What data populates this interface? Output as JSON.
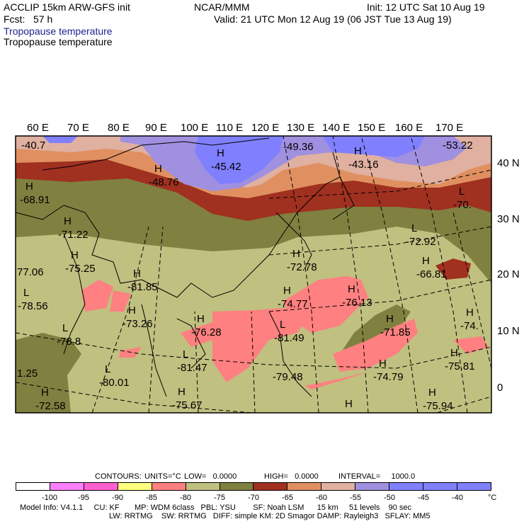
{
  "header": {
    "model": "ACCLIP 15km ARW-GFS init",
    "org": "NCAR/MMM",
    "init": "Init: 12 UTC Sat 10 Aug 19",
    "fcst": "Fcst:   57 h",
    "valid": "Valid: 21 UTC Mon 12 Aug 19 (06 JST Tue 13 Aug 19)",
    "field_title_1": "Tropopause temperature",
    "field_title_2": "Tropopause temperature",
    "title_color_1": "#202090"
  },
  "axes": {
    "lon_labels": [
      "60 E",
      "70 E",
      "80 E",
      "90 E",
      "100 E",
      "110 E",
      "120 E",
      "130 E",
      "140 E",
      "150 E",
      "160 E",
      "170 E"
    ],
    "lat_labels": [
      "40 N",
      "30 N",
      "20 N",
      "10 N",
      "0"
    ]
  },
  "map_labels": [
    {
      "sym": "",
      "val": "-40.7"
    },
    {
      "sym": "H",
      "val": "-68.91"
    },
    {
      "sym": "H",
      "val": "-71.22"
    },
    {
      "sym": "H",
      "val": "-75.25"
    },
    {
      "sym": "",
      "val": "77.06"
    },
    {
      "sym": "H",
      "val": "-81.85"
    },
    {
      "sym": "L",
      "val": "-78.56"
    },
    {
      "sym": "H",
      "val": "-73.26"
    },
    {
      "sym": "L",
      "val": "-78.8"
    },
    {
      "sym": "",
      "val": "1.25"
    },
    {
      "sym": "L",
      "val": "-80.01"
    },
    {
      "sym": "H",
      "val": "-72.58"
    },
    {
      "sym": "H",
      "val": "-75.67"
    },
    {
      "sym": "H",
      "val": "-76.28"
    },
    {
      "sym": "L",
      "val": "-81.47"
    },
    {
      "sym": "H",
      "val": "-45.42"
    },
    {
      "sym": "H",
      "val": "-48.76"
    },
    {
      "sym": "",
      "val": "-49.36"
    },
    {
      "sym": "H",
      "val": "-43.16"
    },
    {
      "sym": "",
      "val": "-53.22"
    },
    {
      "sym": "L",
      "val": "-70."
    },
    {
      "sym": "L",
      "val": "-72.92"
    },
    {
      "sym": "H",
      "val": "-72.78"
    },
    {
      "sym": "H",
      "val": "-66.81"
    },
    {
      "sym": "H",
      "val": "-74.77"
    },
    {
      "sym": "H",
      "val": "-76.13"
    },
    {
      "sym": "L",
      "val": "-81.49"
    },
    {
      "sym": "H",
      "val": "-71.85"
    },
    {
      "sym": "H",
      "val": "-74."
    },
    {
      "sym": "H",
      "val": "-75.81"
    },
    {
      "sym": "H",
      "val": "-74.79"
    },
    {
      "sym": "",
      "val": "-79.48"
    },
    {
      "sym": "H",
      "val": "-75.94"
    },
    {
      "sym": "H",
      "val": ""
    }
  ],
  "contours_info": {
    "contours": "CONTOURS:",
    "units": "UNITS=°C",
    "low": "LOW=   0.0000",
    "high": "HIGH=   0.0000",
    "interval": "INTERVAL=     1000.0"
  },
  "colorbar": {
    "colors": [
      "#ffffff",
      "#ff80ff",
      "#ff60d0",
      "#ffff80",
      "#ff8080",
      "#c0c080",
      "#808040",
      "#a03020",
      "#e09060",
      "#e0b0a0",
      "#a090e0",
      "#8080ff",
      "#8080ff",
      "#8080ff"
    ],
    "labels": [
      "-100",
      "-95",
      "-90",
      "-85",
      "-80",
      "-75",
      "-70",
      "-65",
      "-60",
      "-55",
      "-50",
      "-45",
      "-40"
    ],
    "unit": "°C"
  },
  "footer": {
    "line1": "Model Info: V4.1.1     CU: KF       MP: WDM 6class   PBL: YSU        SF: Noah LSM      15 km     51 levels    90 sec",
    "line2": "LW: RRTMG    SW: RRTMG   DIFF: simple KM: 2D Smagor DAMP: Rayleigh3   SFLAY: MM5"
  }
}
